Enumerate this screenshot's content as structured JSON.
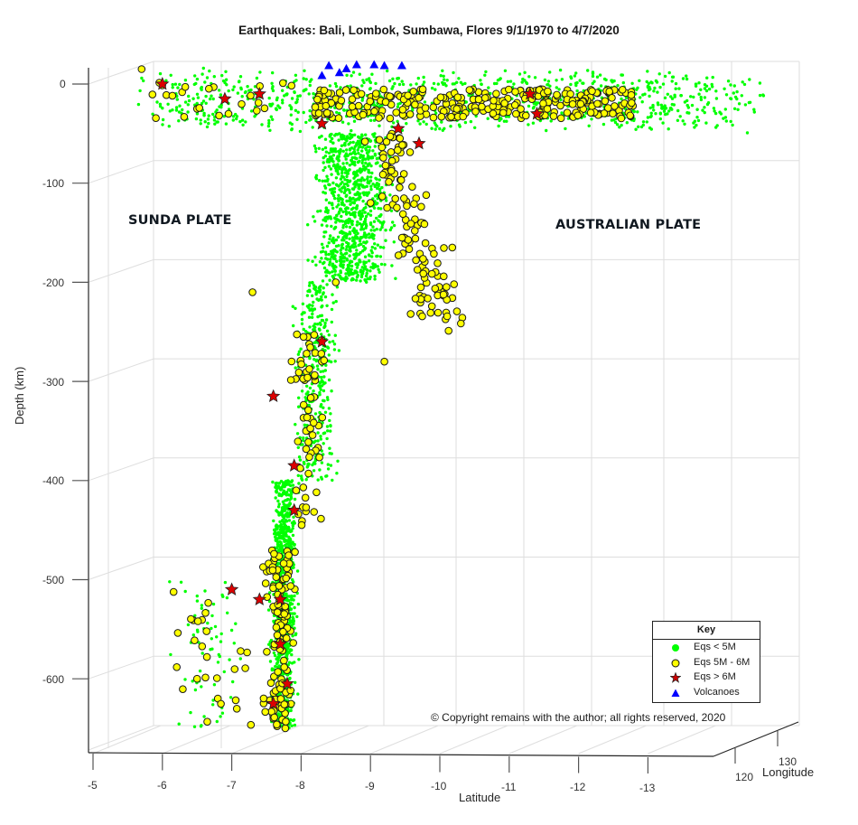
{
  "title": "Earthquakes: Bali, Lombok, Sumbawa, Flores 9/1/1970 to 4/7/2020",
  "annotations": {
    "sunda": "SUNDA PLATE",
    "australian": "AUSTRALIAN PLATE",
    "copyright": "© Copyright remains with the author; all rights reserved, 2020"
  },
  "axes": {
    "zlabel": "Depth (km)",
    "xlabel": "Latitude",
    "ylabel": "Longitude",
    "z_ticks": [
      "0",
      "-100",
      "-200",
      "-300",
      "-400",
      "-500",
      "-600"
    ],
    "x_ticks": [
      "-5",
      "-6",
      "-7",
      "-8",
      "-9",
      "-10",
      "-11",
      "-12",
      "-13"
    ],
    "y_ticks": [
      "120",
      "130"
    ]
  },
  "legend": {
    "title": "Key",
    "items": [
      {
        "label": "Eqs < 5M",
        "marker": "circle-filled",
        "color": "#00ff00"
      },
      {
        "label": "Eqs 5M - 6M",
        "marker": "circle-outlined",
        "color": "#ffff00"
      },
      {
        "label": "Eqs > 6M",
        "marker": "star",
        "color": "#cc0000"
      },
      {
        "label": "Volcanoes",
        "marker": "triangle",
        "color": "#0000ff"
      }
    ]
  },
  "colors": {
    "small": "#00ff00",
    "medium": "#ffff00",
    "large": "#dd0000",
    "volcano": "#0000ff",
    "grid": "#dcdcdc",
    "axis": "#262626"
  },
  "chart_data": {
    "type": "scatter",
    "projection": "3d",
    "title": "Earthquakes: Bali, Lombok, Sumbawa, Flores 9/1/1970 to 4/7/2020",
    "xlabel": "Latitude",
    "ylabel": "Longitude",
    "zlabel": "Depth (km)",
    "xlim": [
      -5,
      -13.5
    ],
    "ylim": [
      115,
      135
    ],
    "zlim": [
      -680,
      10
    ],
    "grid": true,
    "legend_position": "lower right inside",
    "series": [
      {
        "name": "Eqs < 5M",
        "marker": "dot",
        "description": "Thousands of small events forming shallow band near 0 to -50 km across latitudes -5.5 to -14, and a dipping slab descending from ~-9 lat at -60 km to ~-7.7 lat at -650 km",
        "clusters": [
          {
            "lat_range": [
              -5.5,
              -14
            ],
            "depth_range": [
              0,
              -50
            ],
            "density": "high"
          },
          {
            "lat_range": [
              -8.0,
              -9.5
            ],
            "depth_range": [
              -50,
              -200
            ],
            "density": "high"
          },
          {
            "lat_range": [
              -7.8,
              -8.6
            ],
            "depth_range": [
              -200,
              -400
            ],
            "density": "medium"
          },
          {
            "lat_range": [
              -7.5,
              -8.0
            ],
            "depth_range": [
              -400,
              -650
            ],
            "density": "high"
          },
          {
            "lat_range": [
              -6.0,
              -7.3
            ],
            "depth_range": [
              -500,
              -650
            ],
            "density": "low"
          }
        ]
      },
      {
        "name": "Eqs 5M - 6M",
        "marker": "circle",
        "description": "Several hundred moderate events following the same shallow band and slab",
        "sample_points": [
          {
            "lat": -5.7,
            "depth": 15
          },
          {
            "lat": -6.5,
            "depth": -25
          },
          {
            "lat": -8.5,
            "depth": -15
          },
          {
            "lat": -10.2,
            "depth": -10
          },
          {
            "lat": -11.5,
            "depth": -20
          },
          {
            "lat": -12.3,
            "depth": -30
          },
          {
            "lat": -9.0,
            "depth": -120
          },
          {
            "lat": -8.5,
            "depth": -200
          },
          {
            "lat": -8.3,
            "depth": -280
          },
          {
            "lat": -7.3,
            "depth": -210
          },
          {
            "lat": -9.2,
            "depth": -280
          },
          {
            "lat": -8.1,
            "depth": -350
          },
          {
            "lat": -7.8,
            "depth": -480
          },
          {
            "lat": -7.7,
            "depth": -560
          },
          {
            "lat": -6.5,
            "depth": -600
          },
          {
            "lat": -6.8,
            "depth": -620
          },
          {
            "lat": -7.6,
            "depth": -640
          }
        ]
      },
      {
        "name": "Eqs > 6M",
        "marker": "star",
        "sample_points": [
          {
            "lat": -6.0,
            "depth": 0
          },
          {
            "lat": -6.9,
            "depth": -15
          },
          {
            "lat": -7.4,
            "depth": -10
          },
          {
            "lat": -8.3,
            "depth": -40
          },
          {
            "lat": -9.4,
            "depth": -45
          },
          {
            "lat": -9.7,
            "depth": -60
          },
          {
            "lat": -11.3,
            "depth": -10
          },
          {
            "lat": -11.4,
            "depth": -30
          },
          {
            "lat": -8.3,
            "depth": -260
          },
          {
            "lat": -7.6,
            "depth": -315
          },
          {
            "lat": -7.9,
            "depth": -385
          },
          {
            "lat": -7.9,
            "depth": -430
          },
          {
            "lat": -7.0,
            "depth": -510
          },
          {
            "lat": -7.4,
            "depth": -520
          },
          {
            "lat": -7.7,
            "depth": -520
          },
          {
            "lat": -7.7,
            "depth": -565
          },
          {
            "lat": -7.8,
            "depth": -605
          },
          {
            "lat": -7.6,
            "depth": -625
          }
        ]
      },
      {
        "name": "Volcanoes",
        "marker": "triangle",
        "description": "Cluster of surface volcanoes at depth ~0 along lat -8.3 to -9.4",
        "sample_points": [
          {
            "lat": -8.4,
            "depth": 15
          },
          {
            "lat": -8.6,
            "depth": 12
          },
          {
            "lat": -8.8,
            "depth": 16
          },
          {
            "lat": -9.0,
            "depth": 16
          },
          {
            "lat": -9.2,
            "depth": 15
          },
          {
            "lat": -9.4,
            "depth": 15
          },
          {
            "lat": -8.3,
            "depth": 5
          },
          {
            "lat": -8.5,
            "depth": 8
          }
        ]
      }
    ]
  }
}
